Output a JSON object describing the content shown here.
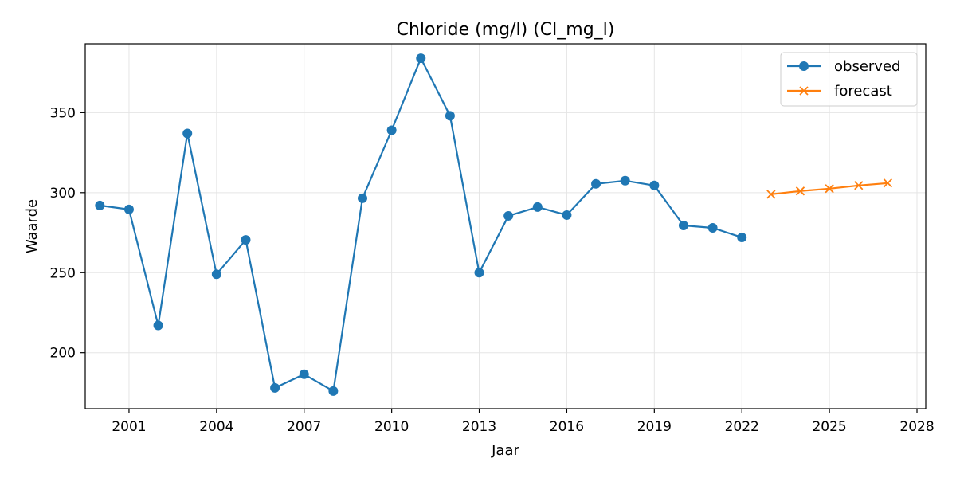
{
  "chart_data": {
    "type": "line",
    "title": "Chloride (mg/l) (Cl_mg_l)",
    "xlabel": "Jaar",
    "ylabel": "Waarde",
    "xlim": [
      1999.5,
      2028.3
    ],
    "ylim": [
      165,
      393
    ],
    "xticks": [
      2001,
      2004,
      2007,
      2010,
      2013,
      2016,
      2019,
      2022,
      2025,
      2028
    ],
    "yticks": [
      200,
      250,
      300,
      350
    ],
    "grid": true,
    "legend_position": "top-right",
    "series": [
      {
        "name": "observed",
        "color": "#1f77b4",
        "marker": "circle",
        "x": [
          2000,
          2001,
          2002,
          2003,
          2004,
          2005,
          2006,
          2007,
          2008,
          2009,
          2010,
          2011,
          2012,
          2013,
          2014,
          2015,
          2016,
          2017,
          2018,
          2019,
          2020,
          2021,
          2022
        ],
        "y": [
          292,
          289.5,
          217,
          337,
          249,
          270.5,
          178,
          186.5,
          176,
          296.5,
          339,
          384,
          348,
          250,
          285.5,
          291,
          286,
          305.5,
          307.5,
          304.5,
          279.5,
          278,
          272
        ]
      },
      {
        "name": "forecast",
        "color": "#ff7f0e",
        "marker": "x",
        "x": [
          2023,
          2024,
          2025,
          2026,
          2027
        ],
        "y": [
          299,
          301,
          302.5,
          304.5,
          306
        ]
      }
    ]
  }
}
